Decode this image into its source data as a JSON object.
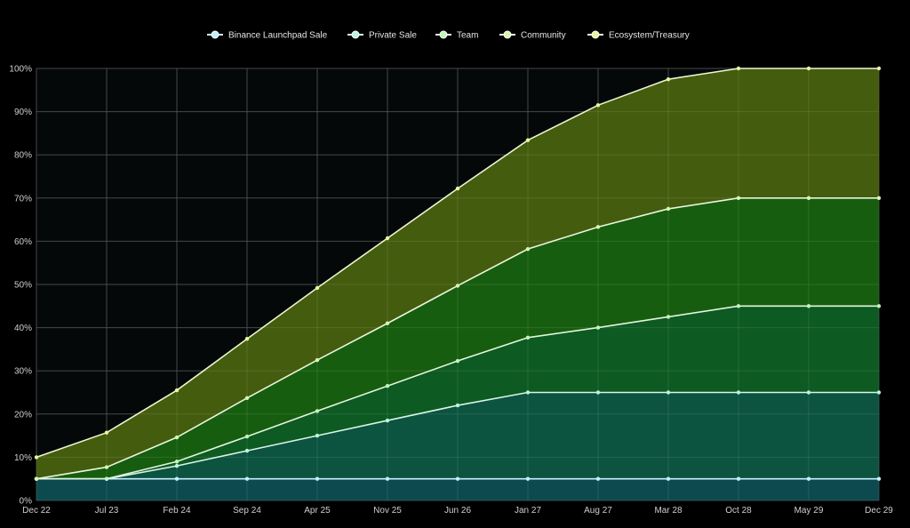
{
  "chart_data": {
    "type": "area",
    "stacked": true,
    "categories": [
      "Dec 22",
      "Jul 23",
      "Feb 24",
      "Sep 24",
      "Apr 25",
      "Nov 25",
      "Jun 26",
      "Jan 27",
      "Aug 27",
      "Mar 28",
      "Oct 28",
      "May 29",
      "Dec 29"
    ],
    "series": [
      {
        "name": "Binance Launchpad Sale",
        "values": [
          5,
          5,
          5,
          5,
          5,
          5,
          5,
          5,
          5,
          5,
          5,
          5,
          5
        ],
        "fill_color": "#0c4a4f",
        "line_color": "#c9f0ff",
        "point_color": "#bfefff"
      },
      {
        "name": "Private Sale",
        "values": [
          0,
          0,
          3,
          6.5,
          10,
          13.5,
          17,
          20,
          20,
          20,
          20,
          20,
          20
        ],
        "fill_color": "#0c5340",
        "line_color": "#d8f5e6",
        "point_color": "#b8f7dc"
      },
      {
        "name": "Team",
        "values": [
          0,
          0,
          1,
          3.3,
          5.7,
          8,
          10.3,
          12.7,
          15,
          17.5,
          20,
          20,
          20
        ],
        "fill_color": "#0d5a23",
        "line_color": "#e2f5dd",
        "point_color": "#c2f5b8"
      },
      {
        "name": "Community",
        "values": [
          0,
          2.7,
          5.6,
          8.9,
          11.8,
          14.5,
          17.4,
          20.5,
          23.3,
          25,
          25,
          25,
          25
        ],
        "fill_color": "#175d0f",
        "line_color": "#eaf5dd",
        "point_color": "#d6f7b0"
      },
      {
        "name": "Ecosystem/Treasury",
        "values": [
          5,
          8,
          10.9,
          13.7,
          16.7,
          19.7,
          22.5,
          25.2,
          28.2,
          30,
          30,
          30,
          30
        ],
        "fill_color": "#445c0e",
        "line_color": "#eef5d2",
        "point_color": "#e6f79a"
      }
    ],
    "ylim": [
      0,
      100
    ],
    "yticks": [
      "0%",
      "10%",
      "20%",
      "30%",
      "40%",
      "50%",
      "60%",
      "70%",
      "80%",
      "90%",
      "100%"
    ],
    "grid": true,
    "legend_position": "top-center",
    "colors": {
      "background": "#000000",
      "plot_background": "#050808",
      "grid": "#2e3333",
      "text": "#cfcfcf"
    }
  }
}
